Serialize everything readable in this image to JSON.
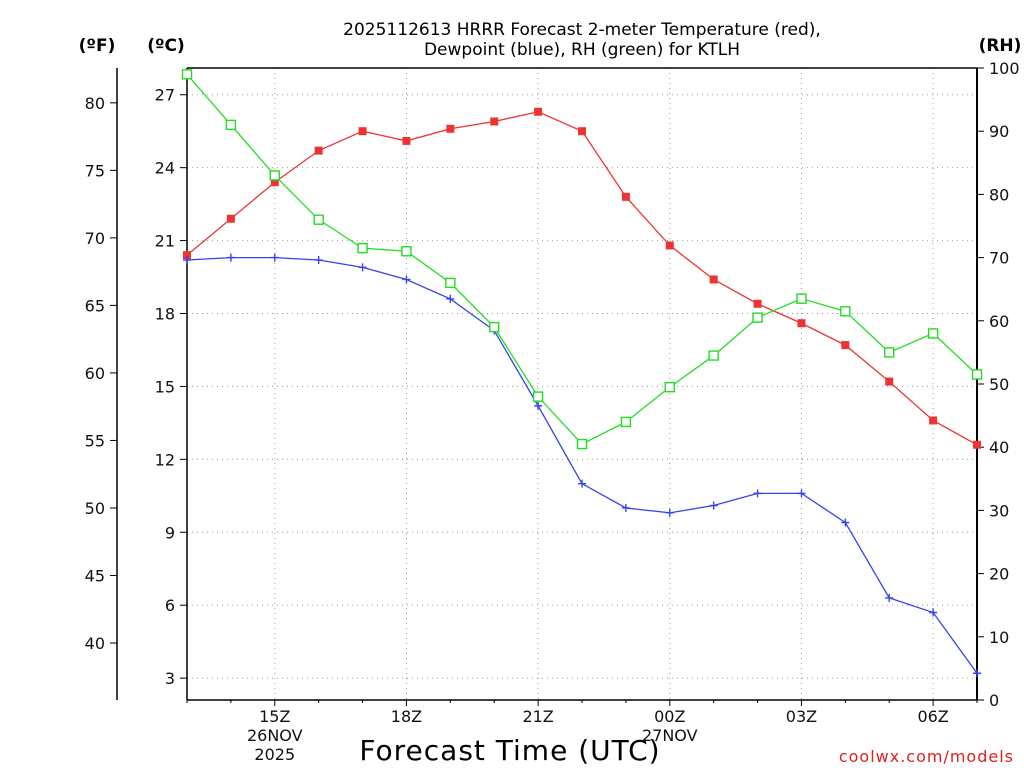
{
  "chart_data": {
    "type": "line",
    "title": [
      "2025112613 HRRR Forecast 2-meter Temperature (red),",
      "Dewpoint (blue), RH (green) for KTLH"
    ],
    "xlabel": "Forecast Time (UTC)",
    "units": {
      "fahrenheit": "(ºF)",
      "celsius": "(ºC)",
      "rh": "(RH)"
    },
    "credit": "coolwx.com/models",
    "x_hours": [
      0,
      1,
      2,
      3,
      4,
      5,
      6,
      7,
      8,
      9,
      10,
      11,
      12,
      13,
      14,
      15,
      16,
      17,
      18
    ],
    "x_range": [
      0,
      18
    ],
    "x_ticks": [
      {
        "hour": 2,
        "lines": [
          "15Z",
          "26NOV",
          "2025"
        ]
      },
      {
        "hour": 5,
        "lines": [
          "18Z"
        ]
      },
      {
        "hour": 8,
        "lines": [
          "21Z"
        ]
      },
      {
        "hour": 11,
        "lines": [
          "00Z",
          "27NOV"
        ]
      },
      {
        "hour": 14,
        "lines": [
          "03Z"
        ]
      },
      {
        "hour": 17,
        "lines": [
          "06Z"
        ]
      }
    ],
    "y_celsius": {
      "range": [
        2.1,
        28.1
      ],
      "ticks": [
        27,
        24,
        21,
        18,
        15,
        12,
        9,
        6,
        3
      ]
    },
    "y_fahrenheit": {
      "ticks": [
        80,
        75,
        70,
        65,
        60,
        55,
        50,
        45,
        40
      ]
    },
    "y_rh": {
      "range": [
        0,
        100
      ],
      "ticks": [
        100,
        90,
        80,
        70,
        60,
        50,
        40,
        30,
        20,
        10,
        0
      ]
    },
    "series": [
      {
        "name": "Temperature",
        "axis": "celsius",
        "color": "#ee3333",
        "marker": "filled-square",
        "values": [
          20.4,
          21.9,
          23.4,
          24.7,
          25.5,
          25.1,
          25.6,
          25.9,
          26.3,
          25.5,
          22.8,
          20.8,
          19.4,
          18.4,
          17.6,
          16.7,
          15.2,
          13.6,
          12.6
        ]
      },
      {
        "name": "Dewpoint",
        "axis": "celsius",
        "color": "#3344ee",
        "marker": "plus",
        "values": [
          20.2,
          20.3,
          20.3,
          20.2,
          19.9,
          19.4,
          18.6,
          17.3,
          14.2,
          11.0,
          10.0,
          9.8,
          10.1,
          10.6,
          10.6,
          9.4,
          6.3,
          5.7,
          3.2
        ]
      },
      {
        "name": "RH",
        "axis": "rh",
        "color": "#22dd22",
        "marker": "open-square",
        "values": [
          99,
          91,
          83,
          76,
          71.5,
          71,
          66,
          59,
          48,
          40.5,
          44,
          49.5,
          54.5,
          60.5,
          63.5,
          61.5,
          55,
          58,
          51.5
        ]
      }
    ]
  }
}
